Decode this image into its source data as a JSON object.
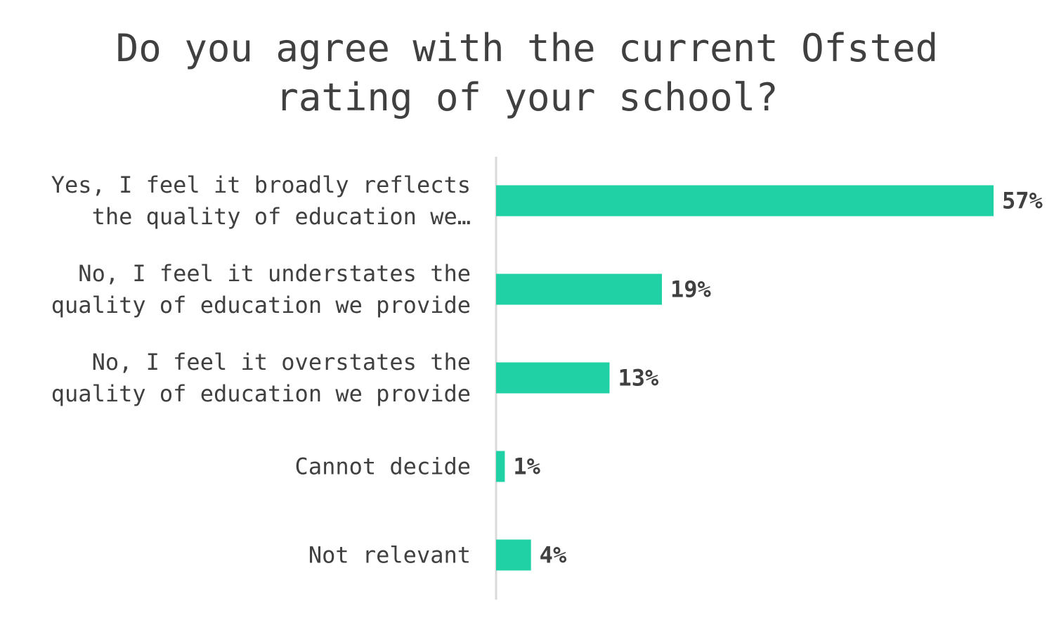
{
  "chart_data": {
    "type": "bar",
    "orientation": "horizontal",
    "title_lines": [
      "Do you agree with the current Ofsted",
      "rating of your school?"
    ],
    "categories": [
      [
        "Yes, I feel it broadly reflects",
        "the quality of education we…"
      ],
      [
        "No, I feel it understates the",
        "quality of education we provide"
      ],
      [
        "No, I feel it overstates the",
        "quality of education we provide"
      ],
      [
        "Cannot decide"
      ],
      [
        "Not relevant"
      ]
    ],
    "values": [
      57,
      19,
      13,
      1,
      4
    ],
    "value_labels": [
      "57%",
      "19%",
      "13%",
      "1%",
      "4%"
    ],
    "unit": "%",
    "xlim": [
      0,
      57
    ],
    "grid": false,
    "legend": "none",
    "colors": {
      "bar": "#1fd1a5",
      "axis": "#d9d9d9",
      "text": "#404040"
    }
  }
}
